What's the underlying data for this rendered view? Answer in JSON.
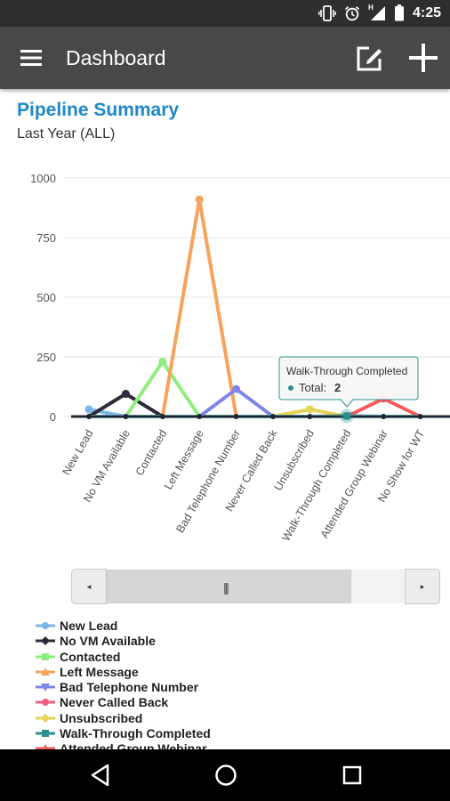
{
  "status_bar": {
    "time": "4:25",
    "network_label": "H"
  },
  "app_bar": {
    "title": "Dashboard"
  },
  "chart_header": {
    "title": "Pipeline Summary",
    "subtitle": "Last Year (ALL)"
  },
  "tooltip": {
    "title": "Walk-Through Completed",
    "label": "Total:",
    "value": "2"
  },
  "chart_data": {
    "type": "line",
    "title": "Pipeline Summary",
    "subtitle": "Last Year (ALL)",
    "ylim": [
      0,
      1000
    ],
    "yticks": [
      "1000",
      "750",
      "500",
      "250",
      "0"
    ],
    "grid": true,
    "categories": [
      "New Lead",
      "No VM Available",
      "Contacted",
      "Left Message",
      "Bad Telephone Number",
      "Never Called Back",
      "Unsubscribed",
      "Walk-Through Completed",
      "Attended Group Webinar",
      "No Show for WT"
    ],
    "series": [
      {
        "name": "New Lead",
        "color": "#7cb5ec",
        "values": [
          30,
          0,
          0,
          0,
          0,
          0,
          0,
          0,
          0,
          0
        ]
      },
      {
        "name": "No VM Available",
        "color": "#2b2b3a",
        "values": [
          0,
          95,
          0,
          0,
          0,
          0,
          0,
          0,
          0,
          0
        ]
      },
      {
        "name": "Contacted",
        "color": "#90ed7d",
        "values": [
          0,
          0,
          230,
          0,
          0,
          0,
          0,
          0,
          0,
          0
        ]
      },
      {
        "name": "Left Message",
        "color": "#f7a35c",
        "values": [
          0,
          0,
          0,
          910,
          0,
          0,
          0,
          0,
          0,
          0
        ]
      },
      {
        "name": "Bad Telephone Number",
        "color": "#8085e9",
        "values": [
          0,
          0,
          0,
          0,
          115,
          0,
          0,
          0,
          0,
          0
        ]
      },
      {
        "name": "Never Called Back",
        "color": "#f15c80",
        "values": [
          0,
          0,
          0,
          0,
          0,
          0,
          0,
          0,
          0,
          0
        ]
      },
      {
        "name": "Unsubscribed",
        "color": "#e4d354",
        "values": [
          0,
          0,
          0,
          0,
          0,
          0,
          30,
          0,
          0,
          0
        ]
      },
      {
        "name": "Walk-Through Completed",
        "color": "#2b908f",
        "values": [
          0,
          0,
          0,
          0,
          0,
          0,
          0,
          2,
          0,
          0
        ]
      },
      {
        "name": "Attended Group Webinar",
        "color": "#f45b5b",
        "values": [
          0,
          0,
          0,
          0,
          0,
          0,
          0,
          0,
          75,
          0
        ]
      },
      {
        "name": "No Show for WT",
        "color": "#91e8e1",
        "values": [
          0,
          0,
          0,
          0,
          0,
          0,
          0,
          0,
          0,
          0
        ]
      }
    ]
  },
  "legend": {
    "items": [
      {
        "label": "New Lead",
        "color": "#7cb5ec",
        "symbol": "circle"
      },
      {
        "label": "No VM Available",
        "color": "#2b2b3a",
        "symbol": "diamond"
      },
      {
        "label": "Contacted",
        "color": "#90ed7d",
        "symbol": "square"
      },
      {
        "label": "Left Message",
        "color": "#f7a35c",
        "symbol": "triangle"
      },
      {
        "label": "Bad Telephone Number",
        "color": "#8085e9",
        "symbol": "triangle-down"
      },
      {
        "label": "Never Called Back",
        "color": "#f15c80",
        "symbol": "circle"
      },
      {
        "label": "Unsubscribed",
        "color": "#e4d354",
        "symbol": "diamond"
      },
      {
        "label": "Walk-Through Completed",
        "color": "#2b908f",
        "symbol": "square"
      },
      {
        "label": "Attended Group Webinar",
        "color": "#f45b5b",
        "symbol": "triangle"
      }
    ]
  },
  "range_scrollbar": {
    "left_arrow": "◂",
    "right_arrow": "▸",
    "grip": "|||"
  },
  "icons": {
    "status": [
      "vibrate-icon",
      "alarm-icon",
      "signal-icon",
      "battery-icon"
    ],
    "app_bar": [
      "menu-icon",
      "edit-icon",
      "add-icon"
    ],
    "nav": [
      "back-icon",
      "home-icon",
      "recent-apps-icon"
    ]
  }
}
